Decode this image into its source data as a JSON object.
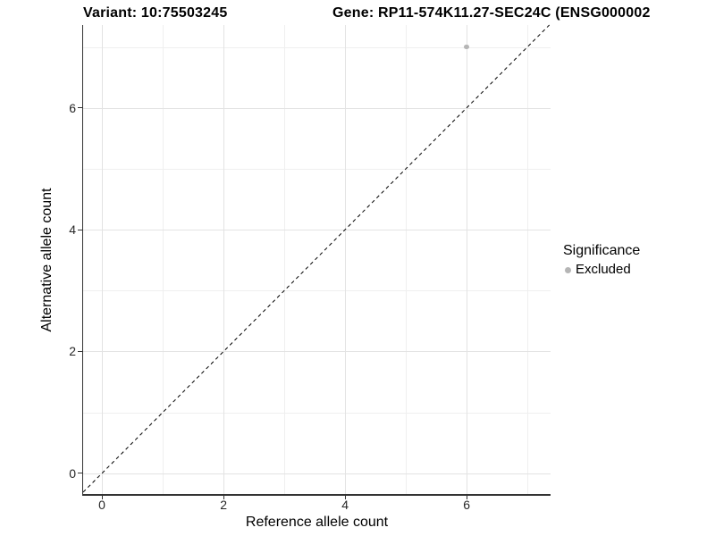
{
  "chart_data": {
    "type": "scatter",
    "title_left": "Variant: 10:75503245",
    "title_right": "Gene: RP11-574K11.27-SEC24C (ENSG000002",
    "x": {
      "label": "Reference allele count",
      "ticks": [
        0,
        2,
        4,
        6
      ],
      "minor_ticks": [
        1,
        3,
        5,
        7
      ],
      "range": [
        -0.31,
        7.38
      ],
      "grid": "on"
    },
    "y": {
      "label": "Alternative allele count",
      "ticks": [
        0,
        2,
        4,
        6
      ],
      "minor_ticks": [
        1,
        3,
        5,
        7
      ],
      "range": [
        -0.34,
        7.36
      ],
      "grid": "on"
    },
    "series": [
      {
        "name": "Excluded",
        "color": "#b5b5b5",
        "points": [
          {
            "x": 6,
            "y": 7
          }
        ]
      }
    ],
    "reference_line": {
      "type": "identity",
      "slope": 1,
      "intercept": 0,
      "linetype": "dashed",
      "color": "#000000"
    },
    "legend": {
      "title": "Significance",
      "position": "right",
      "items": [
        {
          "label": "Excluded",
          "color": "#b5b5b5",
          "marker": "circle"
        }
      ]
    }
  },
  "colors": {
    "background": "#ffffff",
    "grid_major": "#e3e3e3",
    "grid_minor": "#efefef",
    "axis_line": "#333333",
    "tick_text": "#262626",
    "title_text": "#000000"
  }
}
